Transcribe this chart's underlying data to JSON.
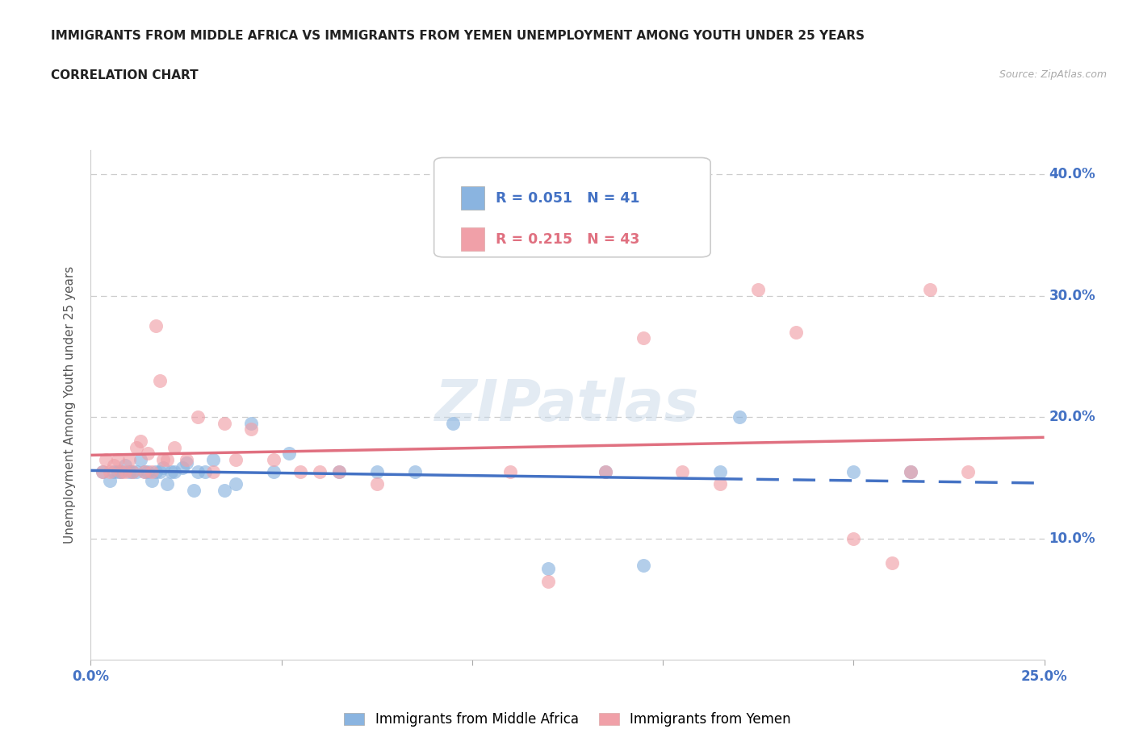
{
  "title_line1": "IMMIGRANTS FROM MIDDLE AFRICA VS IMMIGRANTS FROM YEMEN UNEMPLOYMENT AMONG YOUTH UNDER 25 YEARS",
  "title_line2": "CORRELATION CHART",
  "source": "Source: ZipAtlas.com",
  "ylabel": "Unemployment Among Youth under 25 years",
  "xlim": [
    0.0,
    0.25
  ],
  "ylim": [
    0.0,
    0.42
  ],
  "color_blue": "#8ab4e0",
  "color_pink": "#f0a0a8",
  "color_blue_line": "#4472c4",
  "color_pink_line": "#e07080",
  "r_blue": "R = 0.051",
  "n_blue": "N = 41",
  "r_pink": "R = 0.215",
  "n_pink": "N = 43",
  "label_blue": "Immigrants from Middle Africa",
  "label_pink": "Immigrants from Yemen",
  "watermark": "ZIPatlas",
  "blue_scatter_x": [
    0.003,
    0.005,
    0.006,
    0.007,
    0.008,
    0.009,
    0.01,
    0.011,
    0.012,
    0.013,
    0.014,
    0.015,
    0.016,
    0.017,
    0.018,
    0.019,
    0.02,
    0.021,
    0.022,
    0.024,
    0.025,
    0.027,
    0.028,
    0.03,
    0.032,
    0.035,
    0.038,
    0.042,
    0.048,
    0.052,
    0.065,
    0.075,
    0.085,
    0.095,
    0.12,
    0.135,
    0.145,
    0.165,
    0.17,
    0.2,
    0.215
  ],
  "blue_scatter_y": [
    0.155,
    0.148,
    0.155,
    0.155,
    0.155,
    0.16,
    0.155,
    0.155,
    0.155,
    0.165,
    0.155,
    0.155,
    0.148,
    0.155,
    0.155,
    0.158,
    0.145,
    0.155,
    0.155,
    0.158,
    0.162,
    0.14,
    0.155,
    0.155,
    0.165,
    0.14,
    0.145,
    0.195,
    0.155,
    0.17,
    0.155,
    0.155,
    0.155,
    0.195,
    0.075,
    0.155,
    0.078,
    0.155,
    0.2,
    0.155,
    0.155
  ],
  "pink_scatter_x": [
    0.003,
    0.004,
    0.005,
    0.006,
    0.007,
    0.008,
    0.009,
    0.01,
    0.011,
    0.012,
    0.013,
    0.014,
    0.015,
    0.016,
    0.017,
    0.018,
    0.019,
    0.02,
    0.022,
    0.025,
    0.028,
    0.032,
    0.035,
    0.038,
    0.042,
    0.048,
    0.055,
    0.06,
    0.065,
    0.075,
    0.11,
    0.12,
    0.135,
    0.145,
    0.155,
    0.165,
    0.175,
    0.185,
    0.2,
    0.21,
    0.215,
    0.22,
    0.23
  ],
  "pink_scatter_y": [
    0.155,
    0.165,
    0.155,
    0.16,
    0.165,
    0.155,
    0.155,
    0.165,
    0.155,
    0.175,
    0.18,
    0.155,
    0.17,
    0.155,
    0.275,
    0.23,
    0.165,
    0.165,
    0.175,
    0.165,
    0.2,
    0.155,
    0.195,
    0.165,
    0.19,
    0.165,
    0.155,
    0.155,
    0.155,
    0.145,
    0.155,
    0.065,
    0.155,
    0.265,
    0.155,
    0.145,
    0.305,
    0.27,
    0.1,
    0.08,
    0.155,
    0.305,
    0.155
  ]
}
